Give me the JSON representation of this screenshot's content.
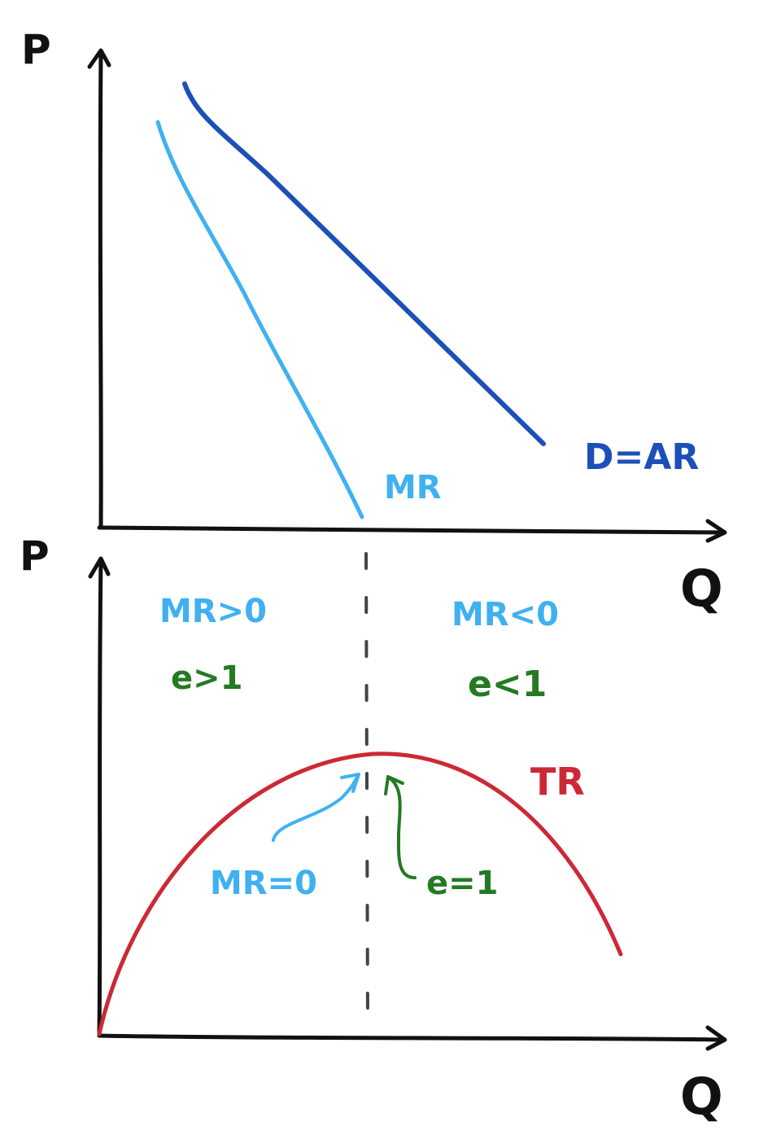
{
  "colors": {
    "axis": "#111111",
    "demand": "#1d4fb8",
    "mr": "#3fb1f2",
    "tr": "#cc2936",
    "elasticity": "#237a22",
    "divider": "#444444"
  },
  "top_panel": {
    "y_axis_label": "P",
    "x_axis_label": "Q",
    "demand_label": "D=AR",
    "mr_label": "MR"
  },
  "bottom_panel": {
    "y_axis_label": "P",
    "x_axis_label": "Q",
    "tr_label": "TR",
    "left_region": {
      "mr": "MR>0",
      "e": "e>1"
    },
    "right_region": {
      "mr": "MR<0",
      "e": "e<1"
    },
    "peak_mr_note": "MR=0",
    "peak_e_note": "e=1"
  }
}
